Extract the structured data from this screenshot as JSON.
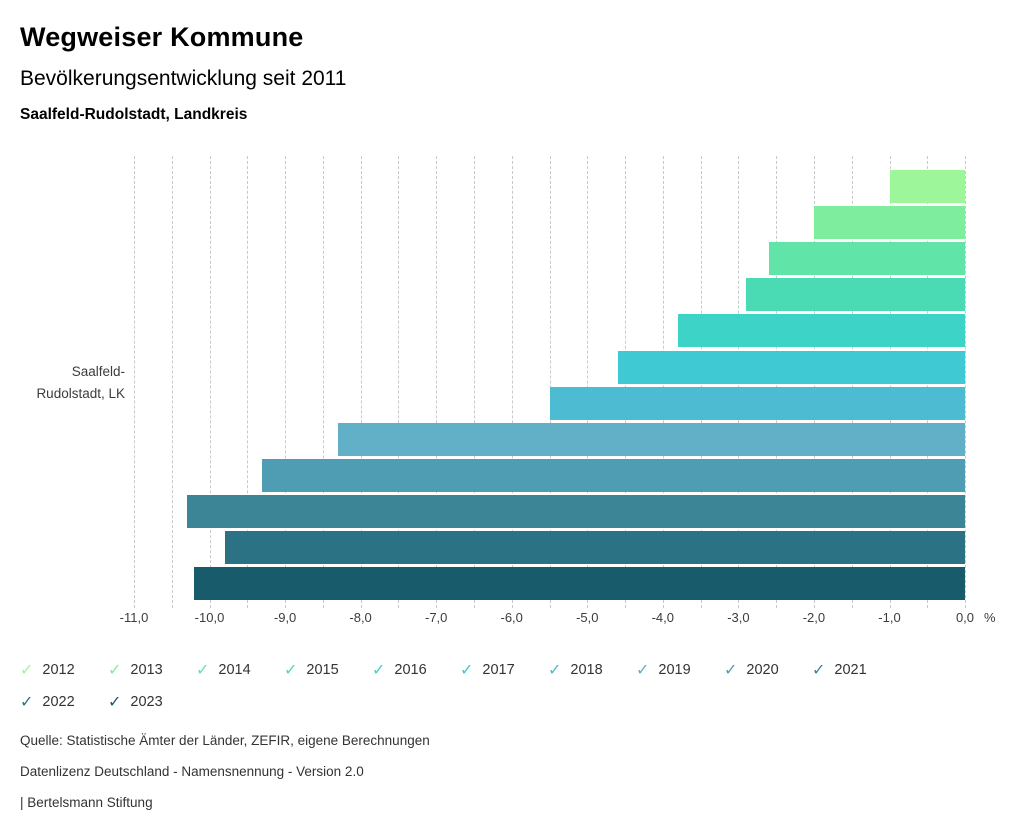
{
  "header": {
    "title": "Wegweiser Kommune",
    "subtitle": "Bevölkerungsentwicklung seit 2011",
    "region": "Saalfeld-Rudolstadt, Landkreis"
  },
  "chart_data": {
    "type": "bar",
    "orientation": "horizontal",
    "title": "Bevölkerungsentwicklung seit 2011",
    "category": "Saalfeld-Rudolstadt, LK",
    "category_label_lines": [
      "Saalfeld-",
      "Rudolstadt, LK"
    ],
    "axis_unit": "%",
    "xlim": [
      -11.0,
      0.0
    ],
    "gridline_step": 0.5,
    "grid": "dashed",
    "legend_position": "bottom",
    "x_ticks": [
      {
        "label": "-11,0",
        "value": -11
      },
      {
        "label": "-10,0",
        "value": -10
      },
      {
        "label": "-9,0",
        "value": -9
      },
      {
        "label": "-8,0",
        "value": -8
      },
      {
        "label": "-7,0",
        "value": -7
      },
      {
        "label": "-6,0",
        "value": -6
      },
      {
        "label": "-5,0",
        "value": -5
      },
      {
        "label": "-4,0",
        "value": -4
      },
      {
        "label": "-3,0",
        "value": -3
      },
      {
        "label": "-2,0",
        "value": -2
      },
      {
        "label": "-1,0",
        "value": -1
      },
      {
        "label": "0,0",
        "value": 0
      }
    ],
    "series": [
      {
        "year": "2012",
        "value": -1.0,
        "color": "#9df69a"
      },
      {
        "year": "2013",
        "value": -2.0,
        "color": "#7eee9e"
      },
      {
        "year": "2014",
        "value": -2.6,
        "color": "#61e4a7"
      },
      {
        "year": "2015",
        "value": -2.9,
        "color": "#4bdbb4"
      },
      {
        "year": "2016",
        "value": -3.8,
        "color": "#3dd3c6"
      },
      {
        "year": "2017",
        "value": -4.6,
        "color": "#3fc9d2"
      },
      {
        "year": "2018",
        "value": -5.5,
        "color": "#4dbcd2"
      },
      {
        "year": "2019",
        "value": -8.3,
        "color": "#62afc8"
      },
      {
        "year": "2020",
        "value": -9.3,
        "color": "#4e9db3"
      },
      {
        "year": "2021",
        "value": -10.3,
        "color": "#3b8597"
      },
      {
        "year": "2022",
        "value": -9.8,
        "color": "#2b7284"
      },
      {
        "year": "2023",
        "value": -10.2,
        "color": "#185c6b"
      }
    ]
  },
  "legend": {
    "check_glyph": "✓"
  },
  "footer": {
    "source": "Quelle: Statistische Ämter der Länder, ZEFIR, eigene Berechnungen",
    "license": "Datenlizenz Deutschland - Namensnennung - Version 2.0",
    "brand": "| Bertelsmann Stiftung"
  }
}
